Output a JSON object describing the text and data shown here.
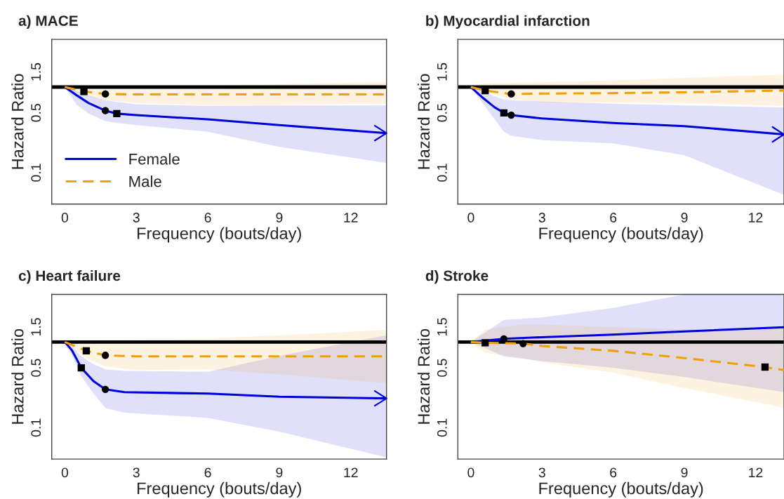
{
  "chart_data": [
    {
      "type": "line",
      "title": "a) MACE",
      "xlabel": "Frequency (bouts/day)",
      "ylabel": "Hazard Ratio",
      "log": "y",
      "xlim": [
        -0.55,
        13.5
      ],
      "ylim": [
        0.043,
        3.6
      ],
      "xticks": [
        0,
        3,
        6,
        9,
        12
      ],
      "yticks": [
        0.1,
        0.5,
        1.5
      ],
      "grid": false,
      "legend": "bottom left",
      "ref_lines": [
        {
          "axis": "y",
          "value": 1,
          "color": "#000000"
        }
      ],
      "series": [
        {
          "name": "Female",
          "type": "line",
          "color": "#0000dd",
          "line_style": "solid",
          "marker": "none",
          "x": [
            0,
            0.5,
            1,
            1.7,
            2.18,
            3,
            6,
            9,
            13.5
          ],
          "values": [
            1,
            0.8,
            0.65,
            0.53,
            0.49,
            0.47,
            0.42,
            0.36,
            0.29
          ],
          "lower": [
            1,
            0.62,
            0.49,
            0.4,
            0.38,
            0.36,
            0.3,
            0.2,
            0.13
          ],
          "upper": [
            1,
            0.9,
            0.8,
            0.7,
            0.67,
            0.63,
            0.6,
            0.61,
            0.61
          ]
        },
        {
          "name": "Male",
          "type": "line",
          "color": "#f0a000",
          "line_style": "dashed",
          "marker": "none",
          "x": [
            0,
            0.8,
            1.7,
            3,
            6,
            9,
            13.5
          ],
          "values": [
            1,
            0.89,
            0.83,
            0.82,
            0.82,
            0.82,
            0.82
          ],
          "lower": [
            1,
            0.8,
            0.7,
            0.65,
            0.61,
            0.62,
            0.64
          ],
          "upper": [
            1,
            1.02,
            1.02,
            1.03,
            1.04,
            1.08,
            1.15
          ]
        },
        {
          "type": "scatter",
          "color": "#000000",
          "marker": "square",
          "x": [
            0.8,
            2.18
          ],
          "values": [
            0.89,
            0.49
          ]
        },
        {
          "type": "scatter",
          "color": "#000000",
          "marker": "circle",
          "x": [
            1.7,
            1.7
          ],
          "values": [
            0.83,
            0.53
          ]
        }
      ]
    },
    {
      "type": "line",
      "title": "b) Myocardial infarction",
      "xlabel": "Frequency (bouts/day)",
      "ylabel": "Hazard Ratio",
      "log": "y",
      "xlim": [
        -0.55,
        13.2
      ],
      "ylim": [
        0.043,
        3.6
      ],
      "xticks": [
        0,
        3,
        6,
        9,
        12
      ],
      "yticks": [
        0.1,
        0.5,
        1.5
      ],
      "grid": false,
      "ref_lines": [
        {
          "axis": "y",
          "value": 1,
          "color": "#000000"
        }
      ],
      "series": [
        {
          "type": "line",
          "color": "#0000dd",
          "line_style": "solid",
          "marker": "none",
          "x": [
            0,
            0.5,
            1,
            1.39,
            1.7,
            3,
            6,
            9,
            13.2
          ],
          "values": [
            1,
            0.75,
            0.58,
            0.5,
            0.47,
            0.43,
            0.38,
            0.35,
            0.28
          ],
          "lower": [
            1,
            0.65,
            0.42,
            0.3,
            0.27,
            0.24,
            0.22,
            0.16,
            0.055
          ],
          "upper": [
            1,
            0.88,
            0.78,
            0.72,
            0.7,
            0.68,
            0.64,
            0.61,
            0.58
          ]
        },
        {
          "type": "line",
          "color": "#f0a000",
          "line_style": "dashed",
          "marker": "none",
          "x": [
            0,
            0.6,
            1.7,
            3,
            6,
            9,
            13.2
          ],
          "values": [
            1,
            0.91,
            0.83,
            0.84,
            0.85,
            0.87,
            0.91
          ],
          "lower": [
            1,
            0.88,
            0.72,
            0.66,
            0.66,
            0.65,
            0.6
          ],
          "upper": [
            1,
            1.1,
            1.12,
            1.14,
            1.2,
            1.28,
            1.4
          ]
        },
        {
          "type": "scatter",
          "color": "#000000",
          "marker": "square",
          "x": [
            0.6,
            1.39
          ],
          "values": [
            0.91,
            0.5
          ]
        },
        {
          "type": "scatter",
          "color": "#000000",
          "marker": "circle",
          "x": [
            1.7,
            1.7
          ],
          "values": [
            0.83,
            0.47
          ]
        }
      ]
    },
    {
      "type": "line",
      "title": "c) Heart failure",
      "xlabel": "Frequency (bouts/day)",
      "ylabel": "Hazard Ratio",
      "log": "y",
      "xlim": [
        -0.55,
        13.5
      ],
      "ylim": [
        0.043,
        3.6
      ],
      "xticks": [
        0,
        3,
        6,
        9,
        12
      ],
      "yticks": [
        0.1,
        0.5,
        1.5
      ],
      "grid": false,
      "ref_lines": [
        {
          "axis": "y",
          "value": 1,
          "color": "#000000"
        }
      ],
      "series": [
        {
          "type": "line",
          "color": "#0000dd",
          "line_style": "solid",
          "marker": "none",
          "x": [
            0,
            0.3,
            0.69,
            1.2,
            1.7,
            2.5,
            6,
            9,
            13.5
          ],
          "values": [
            1,
            0.8,
            0.5,
            0.35,
            0.28,
            0.26,
            0.25,
            0.23,
            0.22
          ],
          "lower": [
            1,
            0.7,
            0.4,
            0.25,
            0.17,
            0.15,
            0.13,
            0.09,
            0.045
          ],
          "upper": [
            1,
            0.9,
            0.68,
            0.55,
            0.48,
            0.46,
            0.45,
            0.69,
            1.2
          ]
        },
        {
          "type": "line",
          "color": "#f0a000",
          "line_style": "dashed",
          "marker": "none",
          "x": [
            0,
            0.9,
            1.7,
            3,
            6,
            9,
            13.5
          ],
          "values": [
            1,
            0.79,
            0.7,
            0.68,
            0.68,
            0.68,
            0.68
          ],
          "lower": [
            1,
            0.65,
            0.52,
            0.47,
            0.48,
            0.42,
            0.33
          ],
          "upper": [
            1,
            1.04,
            1.05,
            1.06,
            1.1,
            1.2,
            1.38
          ]
        },
        {
          "type": "scatter",
          "color": "#000000",
          "marker": "square",
          "x": [
            0.9,
            0.69
          ],
          "values": [
            0.79,
            0.5
          ]
        },
        {
          "type": "scatter",
          "color": "#000000",
          "marker": "circle",
          "x": [
            1.7,
            1.7
          ],
          "values": [
            0.7,
            0.28
          ]
        }
      ]
    },
    {
      "type": "line",
      "title": "d) Stroke",
      "xlabel": "Frequency (bouts/day)",
      "ylabel": "Hazard Ratio",
      "log": "y",
      "xlim": [
        -0.55,
        13.2
      ],
      "ylim": [
        0.043,
        3.6
      ],
      "xticks": [
        0,
        3,
        6,
        9,
        12
      ],
      "yticks": [
        0.1,
        0.5,
        1.5
      ],
      "grid": false,
      "ref_lines": [
        {
          "axis": "y",
          "value": 1,
          "color": "#000000"
        }
      ],
      "series": [
        {
          "type": "line",
          "color": "#0000dd",
          "line_style": "solid",
          "marker": "none",
          "x": [
            0,
            1.39,
            3,
            6,
            9,
            13.2
          ],
          "values": [
            1,
            1.09,
            1.14,
            1.22,
            1.33,
            1.49
          ],
          "lower": [
            1,
            0.68,
            0.6,
            0.5,
            0.39,
            0.26
          ],
          "upper": [
            1,
            1.82,
            1.94,
            2.5,
            3.6,
            3.6
          ]
        },
        {
          "type": "line",
          "color": "#f0a000",
          "line_style": "dashed",
          "marker": "none",
          "x": [
            0,
            0.6,
            2.2,
            3,
            6,
            9,
            12.4,
            13.2
          ],
          "values": [
            1,
            0.98,
            0.96,
            0.9,
            0.79,
            0.65,
            0.51,
            0.47
          ],
          "lower": [
            1,
            0.75,
            0.65,
            0.58,
            0.44,
            0.29,
            0.19,
            0.17
          ],
          "upper": [
            1,
            1.4,
            1.6,
            1.6,
            1.5,
            1.4,
            1.42,
            1.45
          ]
        },
        {
          "type": "scatter",
          "color": "#000000",
          "marker": "square",
          "x": [
            0.6,
            12.4
          ],
          "values": [
            0.98,
            0.51
          ]
        },
        {
          "type": "scatter",
          "color": "#000000",
          "marker": "circle",
          "x": [
            1.39,
            2.2
          ],
          "values": [
            1.09,
            0.96
          ]
        }
      ]
    }
  ]
}
